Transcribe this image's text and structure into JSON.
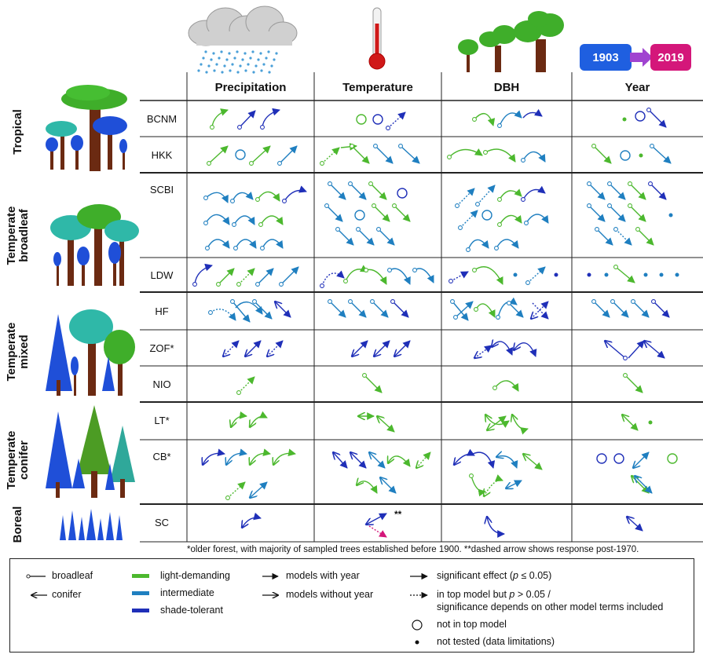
{
  "header": {
    "columns": [
      "Precipitation",
      "Temperature",
      "DBH",
      "Year"
    ],
    "year_start": "1903",
    "year_end": "2019"
  },
  "biomes": [
    {
      "label_line1": "Tropical",
      "label_line2": ""
    },
    {
      "label_line1": "Temperate",
      "label_line2": "broadleaf"
    },
    {
      "label_line1": "Temperate",
      "label_line2": "mixed"
    },
    {
      "label_line1": "Temperate",
      "label_line2": "conifer"
    },
    {
      "label_line1": "Boreal",
      "label_line2": ""
    }
  ],
  "sites": [
    "BCNM",
    "HKK",
    "SCBI",
    "LDW",
    "HF",
    "ZOF*",
    "NIO",
    "LT*",
    "CB*",
    "SC"
  ],
  "annotations": {
    "sc_note": "**"
  },
  "footnote": "*older forest, with majority of sampled trees established before 1900.  **dashed arrow shows response post-1970.",
  "legend": {
    "broadleaf": "broadleaf",
    "conifer": "conifer",
    "light_demanding": "light-demanding",
    "intermediate": "intermediate",
    "shade_tolerant": "shade-tolerant",
    "models_with_year": "models with year",
    "models_without_year": "models without year",
    "significant_effect_prefix": "significant effect (",
    "significant_effect_p": "p",
    "significant_effect_suffix": " ≤ 0.05)",
    "top_model_prefix": "in top model but ",
    "top_model_p": "p",
    "top_model_suffix": " > 0.05 /",
    "top_model_line2": "significance depends on other model terms included",
    "not_in_top_model": "not in top model",
    "not_tested": "not tested (data limitations)"
  },
  "colors": {
    "light_demanding": "#4cb82e",
    "intermediate": "#1f7fc0",
    "shade_tolerant": "#1f2fb8",
    "post1970": "#d4177a",
    "year_start_bg": "#1f5fe0",
    "year_end_bg": "#d4177a",
    "year_arrow": "#a043d0"
  }
}
